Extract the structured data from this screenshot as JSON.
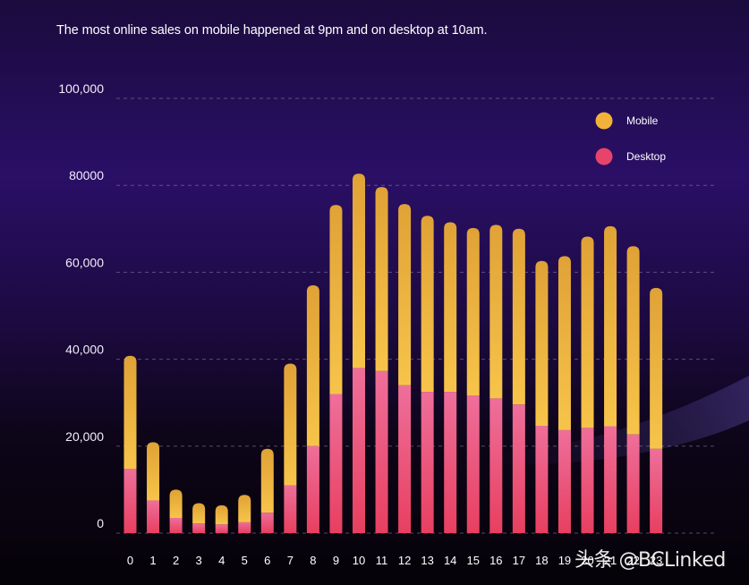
{
  "chart_data": {
    "type": "bar",
    "stacked": true,
    "title": "The most online sales on mobile happened at 9pm and on desktop at 10am.",
    "xlabel": "",
    "ylabel": "",
    "categories": [
      "0",
      "1",
      "2",
      "3",
      "4",
      "5",
      "6",
      "7",
      "8",
      "9",
      "10",
      "11",
      "12",
      "13",
      "14",
      "15",
      "16",
      "17",
      "18",
      "19",
      "20",
      "21",
      "22",
      "23"
    ],
    "series": [
      {
        "name": "Desktop",
        "color": "#e8436a",
        "values": [
          14800,
          7500,
          3500,
          2200,
          2000,
          2500,
          4700,
          11000,
          20000,
          32000,
          38000,
          37300,
          34000,
          32500,
          32500,
          31700,
          31000,
          29600,
          24700,
          23700,
          24200,
          24600,
          22700,
          19400
        ]
      },
      {
        "name": "Mobile",
        "color": "#f2b23a",
        "values": [
          26000,
          13400,
          6500,
          4700,
          4400,
          6300,
          14700,
          28000,
          37000,
          43500,
          44700,
          42300,
          41700,
          40500,
          39000,
          38500,
          39900,
          40400,
          37900,
          40000,
          44000,
          46000,
          43300,
          37000
        ]
      }
    ],
    "y_ticks": [
      "0",
      "20,000",
      "40,000",
      "60,000",
      "80000",
      "100,000"
    ],
    "ylim": [
      0,
      100000
    ],
    "grid": true,
    "legend_position": "top-right"
  },
  "watermark": "头条 @BCLinked"
}
